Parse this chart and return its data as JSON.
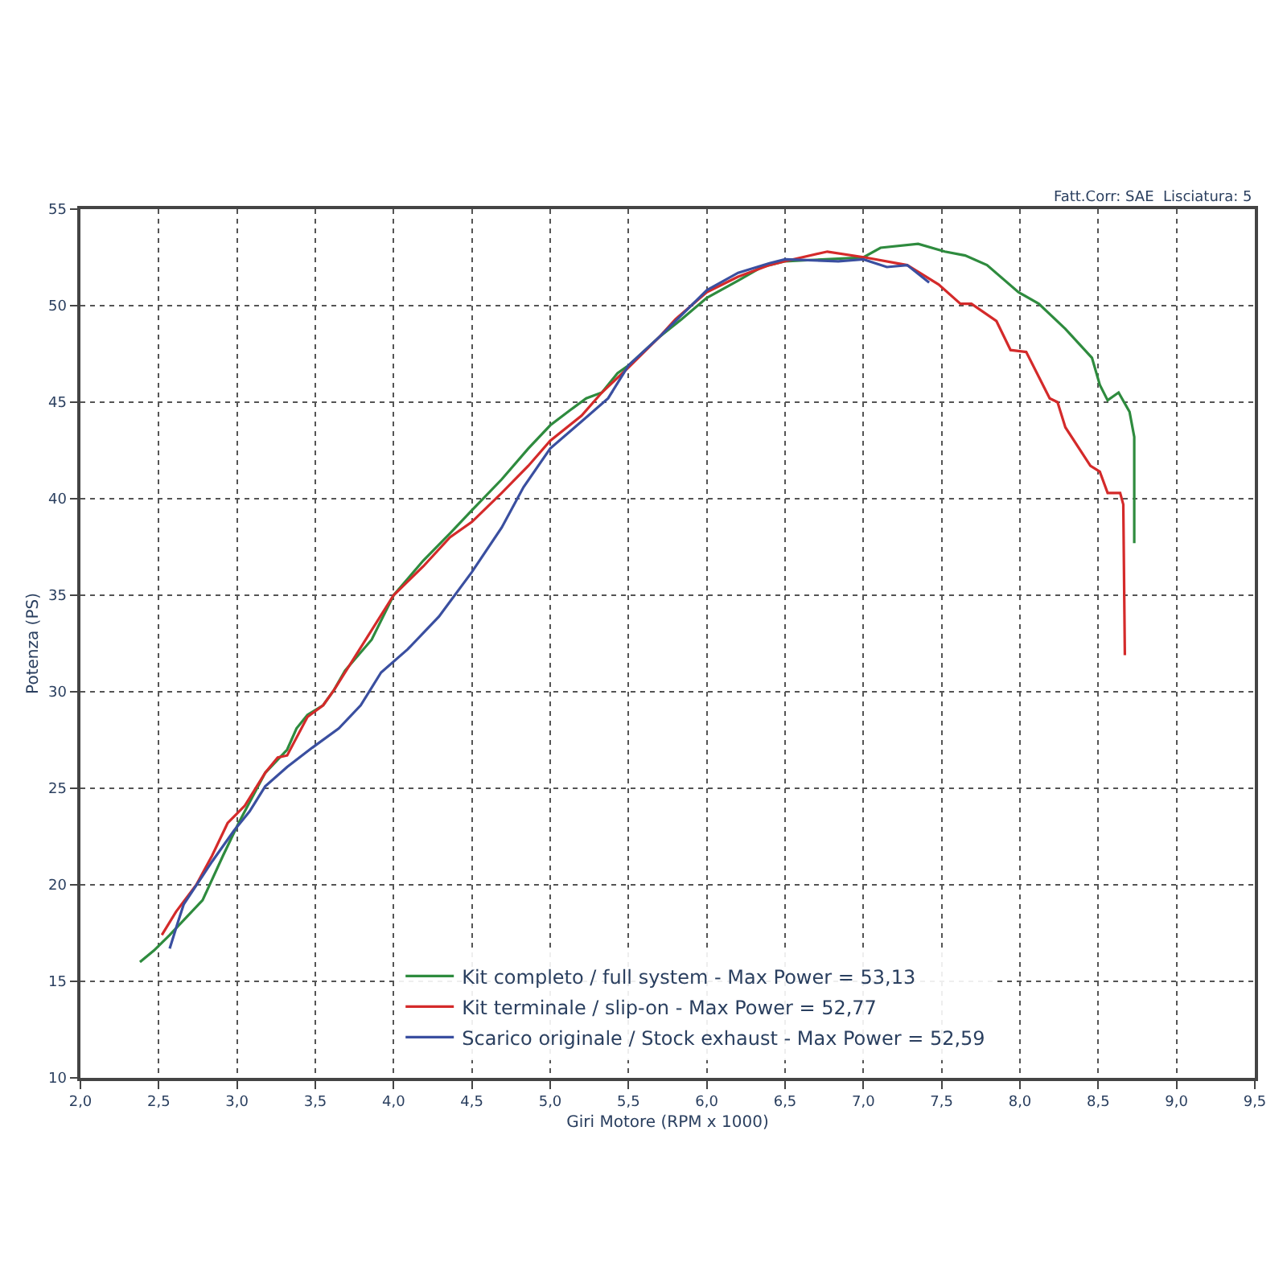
{
  "chart_data": {
    "type": "line",
    "xlabel": "Giri Motore (RPM x 1000)",
    "ylabel": "Potenza (PS)",
    "annotations": [
      "Fatt.Corr: SAE  Lisciatura: 5"
    ],
    "xlim": [
      2.0,
      9.5
    ],
    "ylim": [
      10,
      55
    ],
    "xticks": [
      {
        "value": 2.0,
        "label": "2,0"
      },
      {
        "value": 2.5,
        "label": "2,5"
      },
      {
        "value": 3.0,
        "label": "3,0"
      },
      {
        "value": 3.5,
        "label": "3,5"
      },
      {
        "value": 4.0,
        "label": "4,0"
      },
      {
        "value": 4.5,
        "label": "4,5"
      },
      {
        "value": 5.0,
        "label": "5,0"
      },
      {
        "value": 5.5,
        "label": "5,5"
      },
      {
        "value": 6.0,
        "label": "6,0"
      },
      {
        "value": 6.5,
        "label": "6,5"
      },
      {
        "value": 7.0,
        "label": "7,0"
      },
      {
        "value": 7.5,
        "label": "7,5"
      },
      {
        "value": 8.0,
        "label": "8,0"
      },
      {
        "value": 8.5,
        "label": "8,5"
      },
      {
        "value": 9.0,
        "label": "9,0"
      },
      {
        "value": 9.5,
        "label": "9,5"
      }
    ],
    "yticks": [
      10,
      15,
      20,
      25,
      30,
      35,
      40,
      45,
      50,
      55
    ],
    "grid": true,
    "legend": "bottom left",
    "line_style": "solid",
    "series": [
      {
        "name": "Kit completo / full system - Max Power = 53,13",
        "color": "#2e8b3e",
        "x": [
          2.38,
          2.47,
          2.57,
          2.78,
          2.91,
          3.01,
          3.18,
          3.32,
          3.38,
          3.45,
          3.55,
          3.62,
          3.69,
          3.86,
          4.0,
          4.19,
          4.36,
          4.5,
          4.69,
          4.86,
          5.0,
          5.13,
          5.23,
          5.33,
          5.43,
          5.5,
          5.7,
          5.84,
          6.0,
          6.2,
          6.35,
          6.5,
          7.0,
          7.11,
          7.35,
          7.52,
          7.65,
          7.79,
          7.99,
          8.12,
          8.29,
          8.46,
          8.51,
          8.56,
          8.63,
          8.7,
          8.73,
          8.73
        ],
        "values": [
          16.0,
          16.6,
          17.4,
          19.2,
          21.5,
          23.2,
          25.8,
          27.0,
          28.1,
          28.8,
          29.3,
          30.1,
          31.1,
          32.7,
          35.0,
          36.8,
          38.2,
          39.4,
          41.0,
          42.6,
          43.8,
          44.6,
          45.2,
          45.5,
          46.5,
          46.9,
          48.4,
          49.3,
          50.4,
          51.3,
          52.0,
          52.3,
          52.5,
          53.0,
          53.2,
          52.8,
          52.6,
          52.1,
          50.7,
          50.1,
          48.8,
          47.3,
          45.9,
          45.1,
          45.5,
          44.5,
          43.2,
          37.7
        ]
      },
      {
        "name": "Kit terminale / slip-on - Max Power = 52,77",
        "color": "#d42a2a",
        "x": [
          2.52,
          2.61,
          2.74,
          2.84,
          2.94,
          3.05,
          3.18,
          3.26,
          3.32,
          3.45,
          3.55,
          3.62,
          4.0,
          4.19,
          4.36,
          4.5,
          4.69,
          4.86,
          5.0,
          5.2,
          5.33,
          5.5,
          5.7,
          5.8,
          6.0,
          6.2,
          6.4,
          6.5,
          6.77,
          7.01,
          7.28,
          7.48,
          7.62,
          7.69,
          7.85,
          7.94,
          8.04,
          8.19,
          8.24,
          8.29,
          8.45,
          8.51,
          8.56,
          8.64,
          8.66,
          8.67
        ],
        "values": [
          17.4,
          18.6,
          20.0,
          21.5,
          23.2,
          24.1,
          25.8,
          26.6,
          26.7,
          28.7,
          29.3,
          30.1,
          35.0,
          36.5,
          38.0,
          38.8,
          40.3,
          41.7,
          43.0,
          44.3,
          45.5,
          46.8,
          48.4,
          49.3,
          50.7,
          51.5,
          52.1,
          52.3,
          52.8,
          52.5,
          52.1,
          51.1,
          50.1,
          50.1,
          49.2,
          47.7,
          47.6,
          45.2,
          45.0,
          43.7,
          41.7,
          41.4,
          40.3,
          40.3,
          39.7,
          31.9
        ]
      },
      {
        "name": "Scarico originale / Stock exhaust - Max Power = 52,59",
        "color": "#3a4fa0",
        "x": [
          2.57,
          2.62,
          2.66,
          2.84,
          2.98,
          3.08,
          3.18,
          3.32,
          3.48,
          3.65,
          3.79,
          3.92,
          4.09,
          4.29,
          4.5,
          4.69,
          4.83,
          5.0,
          5.2,
          5.37,
          5.5,
          5.7,
          6.0,
          6.2,
          6.4,
          6.5,
          6.84,
          7.0,
          7.15,
          7.28,
          7.42
        ],
        "values": [
          16.7,
          18.0,
          19.0,
          21.2,
          22.8,
          23.8,
          25.1,
          26.1,
          27.1,
          28.1,
          29.3,
          31.0,
          32.2,
          33.9,
          36.2,
          38.5,
          40.6,
          42.6,
          44.0,
          45.2,
          46.9,
          48.4,
          50.8,
          51.7,
          52.2,
          52.4,
          52.3,
          52.4,
          52.0,
          52.1,
          51.2
        ]
      }
    ]
  }
}
